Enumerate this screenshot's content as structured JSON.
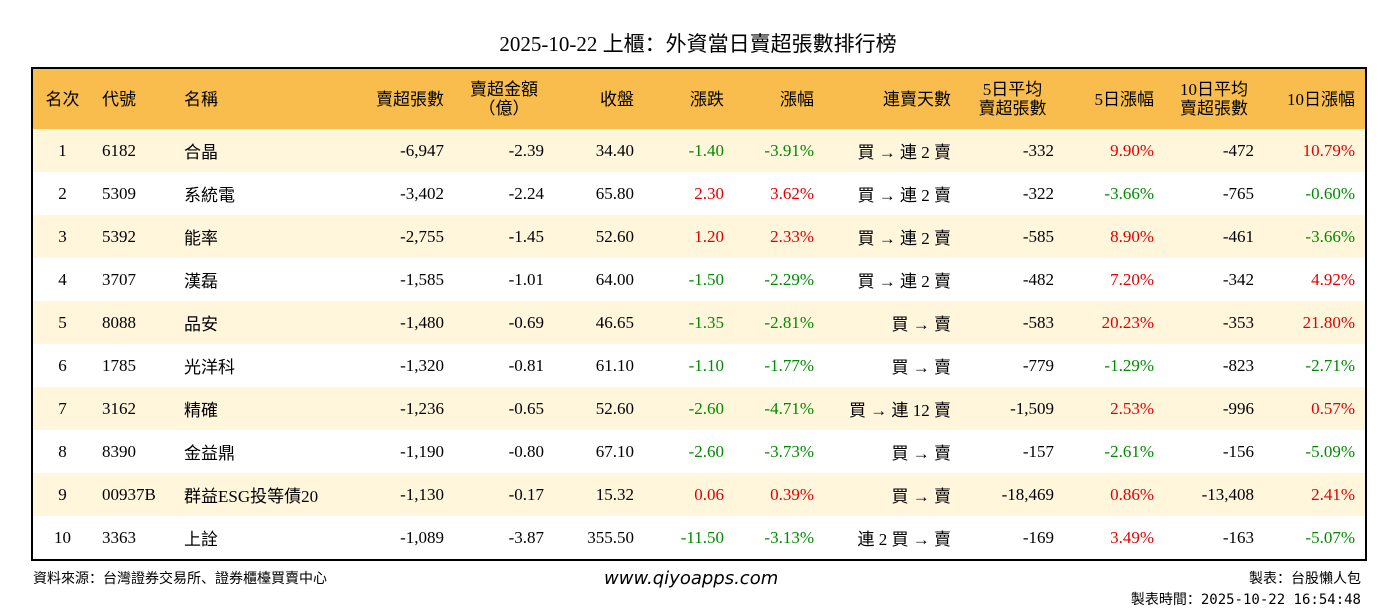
{
  "header": {
    "title": "2025-10-22 上櫃：外資當日賣超張數排行榜"
  },
  "table": {
    "columns": [
      [
        "名次"
      ],
      [
        "代號"
      ],
      [
        "名稱"
      ],
      [
        "賣超張數"
      ],
      [
        "賣超金額",
        "（億）"
      ],
      [
        "收盤"
      ],
      [
        "漲跌"
      ],
      [
        "漲幅"
      ],
      [
        "連賣天數"
      ],
      [
        "5日平均",
        "賣超張數"
      ],
      [
        "5日漲幅"
      ],
      [
        "10日平均",
        "賣超張數"
      ],
      [
        "10日漲幅"
      ]
    ],
    "rows": [
      [
        "1",
        "6182",
        "合晶",
        "-6,947",
        "-2.39",
        "34.40",
        "-1.40",
        "-3.91%",
        "買 → 連 2 賣",
        "-332",
        "9.90%",
        "-472",
        "10.79%"
      ],
      [
        "2",
        "5309",
        "系統電",
        "-3,402",
        "-2.24",
        "65.80",
        "2.30",
        "3.62%",
        "買 → 連 2 賣",
        "-322",
        "-3.66%",
        "-765",
        "-0.60%"
      ],
      [
        "3",
        "5392",
        "能率",
        "-2,755",
        "-1.45",
        "52.60",
        "1.20",
        "2.33%",
        "買 → 連 2 賣",
        "-585",
        "8.90%",
        "-461",
        "-3.66%"
      ],
      [
        "4",
        "3707",
        "漢磊",
        "-1,585",
        "-1.01",
        "64.00",
        "-1.50",
        "-2.29%",
        "買 → 連 2 賣",
        "-482",
        "7.20%",
        "-342",
        "4.92%"
      ],
      [
        "5",
        "8088",
        "品安",
        "-1,480",
        "-0.69",
        "46.65",
        "-1.35",
        "-2.81%",
        "買 → 賣",
        "-583",
        "20.23%",
        "-353",
        "21.80%"
      ],
      [
        "6",
        "1785",
        "光洋科",
        "-1,320",
        "-0.81",
        "61.10",
        "-1.10",
        "-1.77%",
        "買 → 賣",
        "-779",
        "-1.29%",
        "-823",
        "-2.71%"
      ],
      [
        "7",
        "3162",
        "精確",
        "-1,236",
        "-0.65",
        "52.60",
        "-2.60",
        "-4.71%",
        "買 → 連 12 賣",
        "-1,509",
        "2.53%",
        "-996",
        "0.57%"
      ],
      [
        "8",
        "8390",
        "金益鼎",
        "-1,190",
        "-0.80",
        "67.10",
        "-2.60",
        "-3.73%",
        "買 → 賣",
        "-157",
        "-2.61%",
        "-156",
        "-5.09%"
      ],
      [
        "9",
        "00937B",
        "群益ESG投等債20",
        "-1,130",
        "-0.17",
        "15.32",
        "0.06",
        "0.39%",
        "買 → 賣",
        "-18,469",
        "0.86%",
        "-13,408",
        "2.41%"
      ],
      [
        "10",
        "3363",
        "上詮",
        "-1,089",
        "-3.87",
        "355.50",
        "-11.50",
        "-3.13%",
        "連 2 買 → 賣",
        "-169",
        "3.49%",
        "-163",
        "-5.07%"
      ]
    ]
  },
  "footer": {
    "source": "資料來源：台灣證券交易所、證券櫃檯買賣中心",
    "site": "www.qiyoapps.com",
    "maker": "製表：台股懶人包",
    "time": "製表時間：2025-10-22 16:54:48"
  }
}
